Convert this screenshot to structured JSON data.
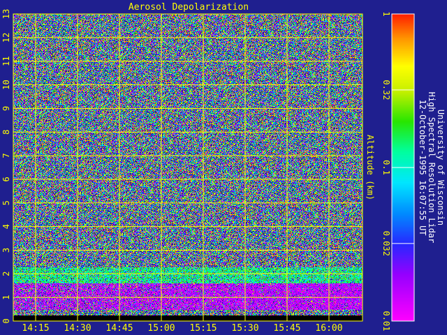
{
  "chart_data": {
    "type": "heatmap",
    "title": "Aerosol Depolarization",
    "ylabel": "Altitude (km)",
    "xlabel": "",
    "y_ticks": [
      "0",
      "1",
      "2",
      "3",
      "4",
      "5",
      "6",
      "7",
      "8",
      "9",
      "10",
      "11",
      "12",
      "13"
    ],
    "ylim": [
      0,
      13
    ],
    "x_ticks": [
      "14:15",
      "14:30",
      "14:45",
      "15:00",
      "15:15",
      "15:30",
      "15:45",
      "16:00"
    ],
    "x_tick_minutes": [
      855,
      870,
      885,
      900,
      915,
      930,
      945,
      960
    ],
    "xlim_minutes": [
      847,
      972
    ],
    "grid": true,
    "colorbar": {
      "scale": "log",
      "range": [
        0.01,
        1
      ],
      "tick_labels": [
        "1",
        "0.32",
        "0.1",
        "0.032",
        "0.01"
      ],
      "tick_values": [
        1,
        0.32,
        0.1,
        0.032,
        0.01
      ]
    },
    "layers": [
      {
        "altitude_range_km": [
          0.5,
          1.6
        ],
        "description": "enhanced low-altitude aerosol layer"
      }
    ]
  },
  "caption": {
    "line1": "University of Wisconsin",
    "line2": "High Spectral Resolution Lidar",
    "line3": "12-October-1995 16:07:55 UT"
  },
  "colors": {
    "background": "#1f1f8f",
    "grid": "#ffff00",
    "text": "#ffff00",
    "caption_text": "#ffffff"
  }
}
